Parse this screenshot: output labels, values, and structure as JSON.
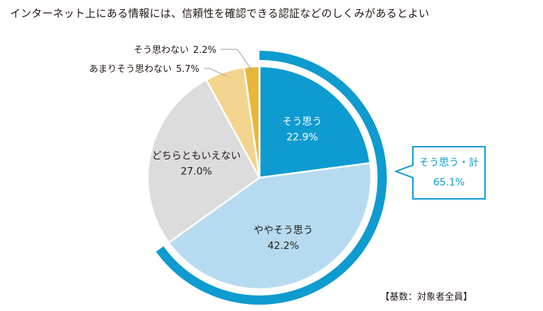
{
  "chart_data": {
    "type": "pie",
    "title": "インターネット上にある情報には、信頼性を確認できる認証などのしくみがあるとよい",
    "slices": [
      {
        "label": "そう思う",
        "value": 22.9,
        "display": "22.9%",
        "color": "#0e9bd0",
        "text_color": "#ffffff",
        "label_mode": "inside"
      },
      {
        "label": "ややそう思う",
        "value": 42.2,
        "display": "42.2%",
        "color": "#b6dbf0",
        "text_color": "#231815",
        "label_mode": "inside"
      },
      {
        "label": "どちらともいえない",
        "value": 27.0,
        "display": "27.0%",
        "color": "#dcdcdc",
        "text_color": "#231815",
        "label_mode": "inside"
      },
      {
        "label": "あまりそう思わない",
        "value": 5.7,
        "display": "5.7%",
        "color": "#f2d48e",
        "text_color": "#231815",
        "label_mode": "outside"
      },
      {
        "label": "そう思わない",
        "value": 2.2,
        "display": "2.2%",
        "color": "#e8b63a",
        "text_color": "#231815",
        "label_mode": "outside"
      }
    ],
    "start": "top",
    "direction": "clockwise",
    "highlight_arc": {
      "label": "そう思う・計",
      "value": "65.1%",
      "covers": [
        "そう思う",
        "ややそう思う"
      ],
      "color": "#0e9bd0"
    },
    "base_note": "【基数：対象者全員】"
  }
}
